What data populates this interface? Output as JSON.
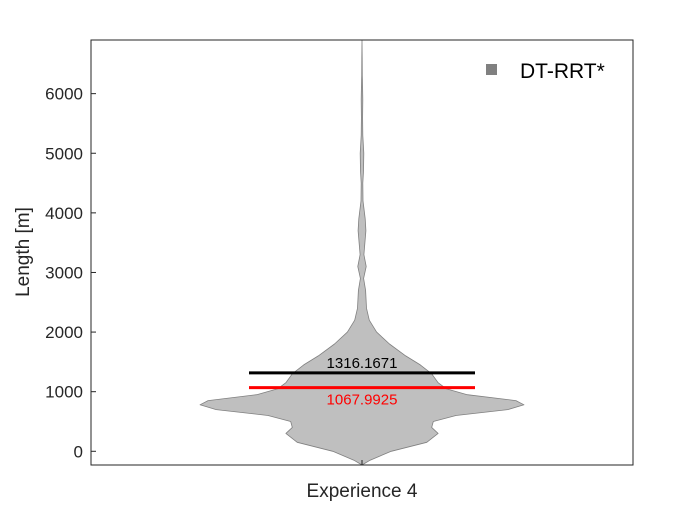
{
  "chart_data": {
    "type": "violin",
    "categories": [
      "Experience 4"
    ],
    "xlabel": "",
    "ylabel": "Length [m]",
    "ylim": [
      -230,
      6900
    ],
    "yticks": [
      0,
      1000,
      2000,
      3000,
      4000,
      5000,
      6000
    ],
    "grid": false,
    "legend": {
      "position": "top-right",
      "entries": [
        {
          "name": "DT-RRT*",
          "color": "#808080"
        }
      ]
    },
    "series": [
      {
        "name": "DT-RRT*",
        "category": "Experience 4",
        "fill_color": "#bfbfbf",
        "edge_color": "#808080",
        "y_min": -230,
        "y_max": 6900,
        "density_profile": [
          [
            -230,
            0.0
          ],
          [
            -150,
            0.05
          ],
          [
            0,
            0.18
          ],
          [
            150,
            0.4
          ],
          [
            300,
            0.47
          ],
          [
            400,
            0.43
          ],
          [
            500,
            0.44
          ],
          [
            600,
            0.58
          ],
          [
            700,
            0.9
          ],
          [
            780,
            1.0
          ],
          [
            850,
            0.95
          ],
          [
            950,
            0.65
          ],
          [
            1050,
            0.52
          ],
          [
            1150,
            0.47
          ],
          [
            1300,
            0.43
          ],
          [
            1450,
            0.36
          ],
          [
            1600,
            0.27
          ],
          [
            1800,
            0.17
          ],
          [
            2000,
            0.09
          ],
          [
            2200,
            0.045
          ],
          [
            2400,
            0.028
          ],
          [
            2700,
            0.022
          ],
          [
            2900,
            0.01
          ],
          [
            3100,
            0.026
          ],
          [
            3300,
            0.012
          ],
          [
            3500,
            0.018
          ],
          [
            3700,
            0.024
          ],
          [
            3900,
            0.02
          ],
          [
            4200,
            0.006
          ],
          [
            4500,
            0.005
          ],
          [
            4700,
            0.009
          ],
          [
            5000,
            0.011
          ],
          [
            5300,
            0.005
          ],
          [
            5600,
            0.004
          ],
          [
            5900,
            0.005
          ],
          [
            6100,
            0.004
          ],
          [
            6300,
            0.002
          ],
          [
            6600,
            0.001
          ],
          [
            6900,
            0.0
          ]
        ],
        "mean": 1316.1671,
        "median": 1067.9925,
        "mean_label": "1316.1671",
        "median_label": "1067.9925",
        "mean_color": "#000000",
        "median_color": "#ff0000"
      }
    ]
  }
}
